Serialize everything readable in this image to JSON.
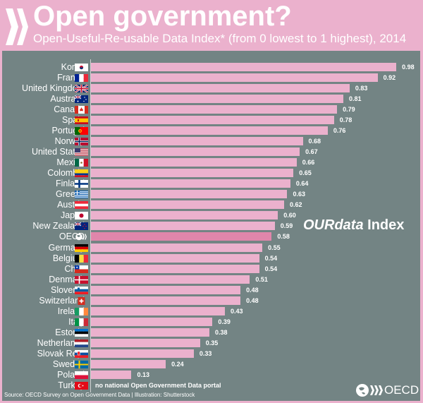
{
  "header": {
    "title": "Open government?",
    "subtitle": "Open-Useful-Re-usable Data Index* (from 0 lowest to 1 highest), 2014"
  },
  "colors": {
    "background": "#ebb1cd",
    "panel": "#738484",
    "bar": "#ebb1cd",
    "highlight": "#e086ab"
  },
  "chart_data": {
    "type": "bar",
    "orientation": "horizontal",
    "title": "Open government?",
    "subtitle": "Open-Useful-Re-usable Data Index* (from 0 lowest to 1 highest), 2014",
    "xlim": [
      0,
      1
    ],
    "annotation": {
      "italic": "OURdata",
      "regular": " Index"
    },
    "categories": [
      "Korea",
      "France",
      "United Kingdom",
      "Australia",
      "Canada",
      "Spain",
      "Portugal",
      "Norway",
      "United States",
      "Mexico",
      "Colombia",
      "Finland",
      "Greece",
      "Austria",
      "Japan",
      "New Zealand",
      "OECD",
      "Germany",
      "Belgium",
      "Chile",
      "Denmark",
      "Slovenia",
      "Switzerland",
      "Ireland",
      "Italy",
      "Estonia",
      "Netherlands",
      "Slovak Rep.",
      "Sweden",
      "Poland",
      "Turkey"
    ],
    "values": [
      0.98,
      0.92,
      0.83,
      0.81,
      0.79,
      0.78,
      0.76,
      0.68,
      0.67,
      0.66,
      0.65,
      0.64,
      0.63,
      0.62,
      0.6,
      0.59,
      0.58,
      0.55,
      0.54,
      0.54,
      0.51,
      0.48,
      0.48,
      0.43,
      0.39,
      0.38,
      0.35,
      0.33,
      0.24,
      0.13,
      null
    ],
    "value_labels": [
      "0.98",
      "0.92",
      "0.83",
      "0.81",
      "0.79",
      "0.78",
      "0.76",
      "0.68",
      "0.67",
      "0.66",
      "0.65",
      "0.64",
      "0.63",
      "0.62",
      "0.60",
      "0.59",
      "0.58",
      "0.55",
      "0.54",
      "0.54",
      "0.51",
      "0.48",
      "0.48",
      "0.43",
      "0.39",
      "0.38",
      "0.35",
      "0.33",
      "0.24",
      "0.13",
      ""
    ],
    "highlight": "OECD",
    "missing_note": "no national Open Government Data portal",
    "flags": [
      "korea-flag",
      "france-flag",
      "uk-flag",
      "australia-flag",
      "canada-flag",
      "spain-flag",
      "portugal-flag",
      "norway-flag",
      "usa-flag",
      "mexico-flag",
      "colombia-flag",
      "finland-flag",
      "greece-flag",
      "austria-flag",
      "japan-flag",
      "new-zealand-flag",
      "oecd-globe-icon",
      "germany-flag",
      "belgium-flag",
      "chile-flag",
      "denmark-flag",
      "slovenia-flag",
      "switzerland-flag",
      "ireland-flag",
      "italy-flag",
      "estonia-flag",
      "netherlands-flag",
      "slovakia-flag",
      "sweden-flag",
      "poland-flag",
      "turkey-flag"
    ]
  },
  "footer": {
    "source": "Source: OECD Survey on Open Government Data | Illustration: Shutterstock",
    "brand": "OECD"
  }
}
